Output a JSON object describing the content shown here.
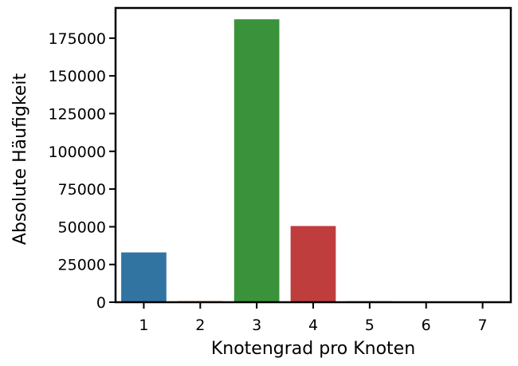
{
  "chart_data": {
    "type": "bar",
    "title": "",
    "xlabel": "Knotengrad pro Knoten",
    "ylabel": "Absolute Häufigkeit",
    "categories": [
      "1",
      "2",
      "3",
      "4",
      "5",
      "6",
      "7"
    ],
    "values": [
      33000,
      800,
      187500,
      50500,
      700,
      80,
      50
    ],
    "colors": [
      "#3274a1",
      "#e1812c",
      "#3a923a",
      "#c03d3e",
      "#9372b2",
      "#845b53",
      "#d684bd"
    ],
    "ylim": [
      0,
      195000
    ],
    "yticks": [
      0,
      25000,
      50000,
      75000,
      100000,
      125000,
      150000,
      175000
    ],
    "ytick_labels": [
      "0",
      "25000",
      "50000",
      "75000",
      "100000",
      "125000",
      "150000",
      "175000"
    ],
    "grid": false,
    "legend": "none"
  }
}
